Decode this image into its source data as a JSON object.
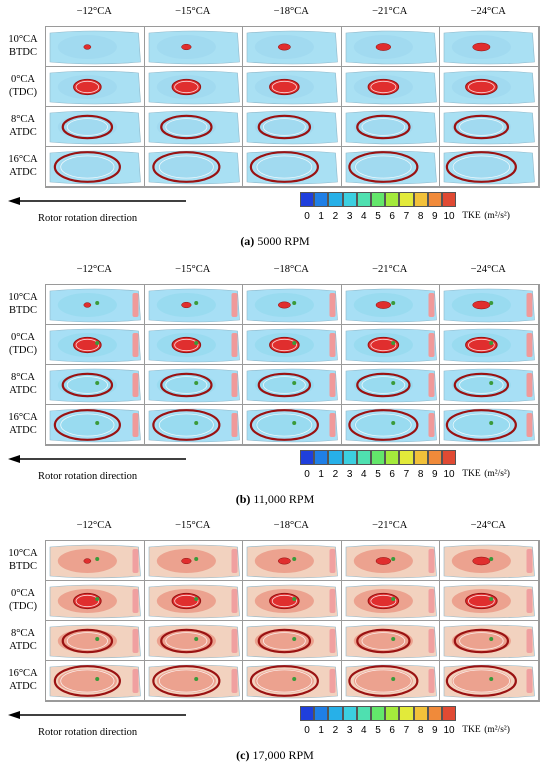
{
  "columns": [
    "−12°CA",
    "−15°CA",
    "−18°CA",
    "−21°CA",
    "−24°CA"
  ],
  "rows": [
    {
      "line1": "10°CA",
      "line2": "BTDC"
    },
    {
      "line1": "0°CA",
      "line2": "(TDC)"
    },
    {
      "line1": "8°CA",
      "line2": "ATDC"
    },
    {
      "line1": "16°CA",
      "line2": "ATDC"
    }
  ],
  "arrow_label": "Rotor rotation direction",
  "colorbar": {
    "ticks": [
      "0",
      "1",
      "2",
      "3",
      "4",
      "5",
      "6",
      "7",
      "8",
      "9",
      "10"
    ],
    "label": "TKE",
    "unit": "(m²/s²)",
    "colors": [
      "#1f3fdc",
      "#1f7fe6",
      "#27b0e8",
      "#3ccfe0",
      "#4fe0b0",
      "#63e66b",
      "#a4ea3c",
      "#e2ea3a",
      "#f2c13a",
      "#f08a3a",
      "#e04a33"
    ]
  },
  "panels": [
    {
      "letter": "(a)",
      "title": "5000 RPM",
      "background": "#a9e0f3",
      "kernel": "#e02e2e"
    },
    {
      "letter": "(b)",
      "title": "11,000 RPM",
      "background": "#a7dff5",
      "kernel": "#e02e2e"
    },
    {
      "letter": "(c)",
      "title": "17,000 RPM",
      "background": "#f2d2bf",
      "kernel": "#e02e2e"
    }
  ]
}
